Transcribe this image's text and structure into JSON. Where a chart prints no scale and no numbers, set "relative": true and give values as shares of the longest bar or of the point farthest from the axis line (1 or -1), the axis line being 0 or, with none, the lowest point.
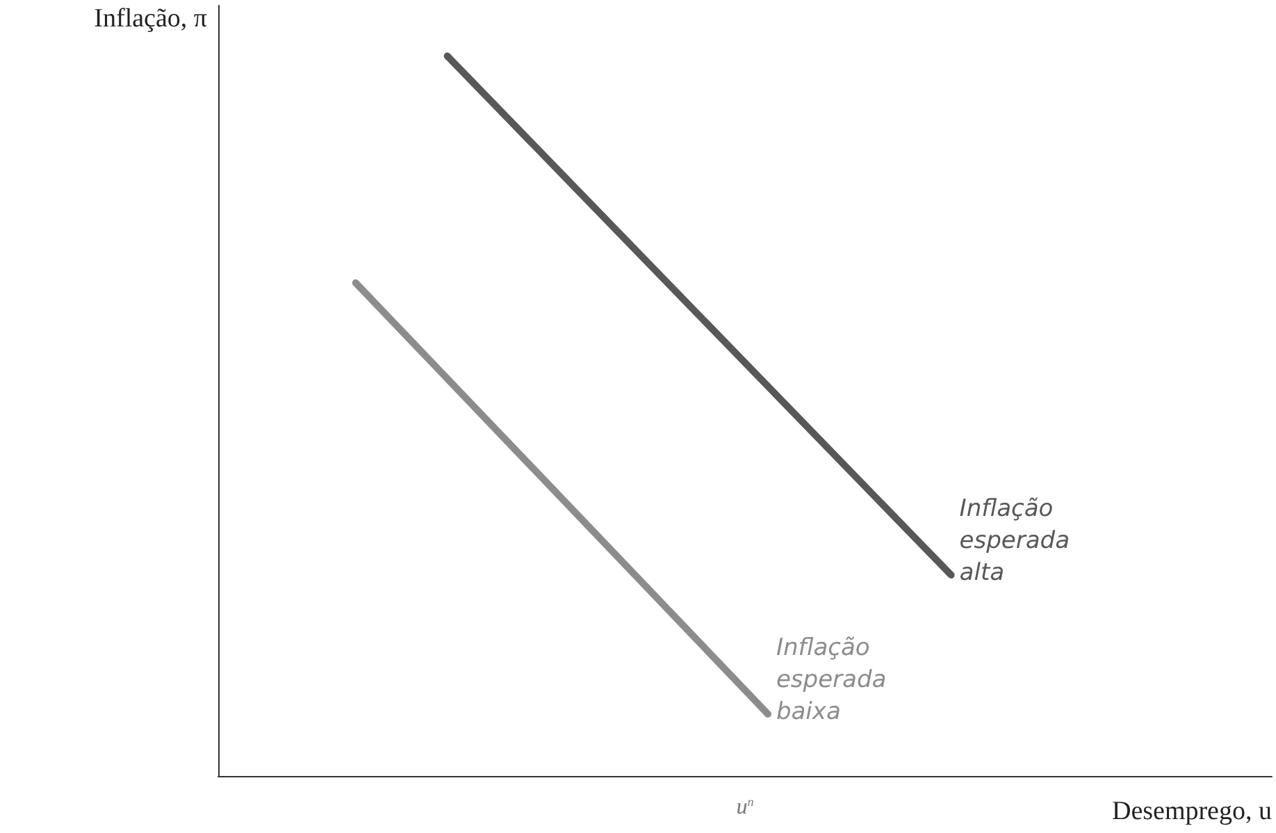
{
  "chart_data": {
    "type": "line",
    "relative": true,
    "xlabel": "Desemprego, u",
    "ylabel": "Inflação, π",
    "annotations": [
      "u$^{n}$"
    ],
    "legend": false,
    "marker": "none",
    "line_style": "solid",
    "categories": [
      null,
      null,
      null,
      null,
      null,
      null,
      null,
      null,
      null,
      null,
      null,
      null,
      null,
      null,
      null,
      null,
      null,
      null,
      null,
      null,
      null,
      null,
      null,
      null
    ],
    "series": [
      {
        "name": "Inflação esperada alta",
        "color": "#585858",
        "values": [
          null,
          null,
          null,
          null,
          null,
          1,
          null,
          null,
          null,
          null,
          null,
          null,
          null,
          null,
          null,
          null,
          0.279,
          null,
          null,
          null,
          null,
          null,
          null,
          null
        ]
      },
      {
        "name": "Inflação esperada baixa",
        "color": "#8c8c8c",
        "values": [
          null,
          null,
          null,
          0.685,
          null,
          null,
          null,
          null,
          null,
          null,
          null,
          null,
          0.086,
          null,
          null,
          null,
          null,
          null,
          null,
          null,
          null,
          null,
          null,
          null
        ]
      }
    ]
  }
}
